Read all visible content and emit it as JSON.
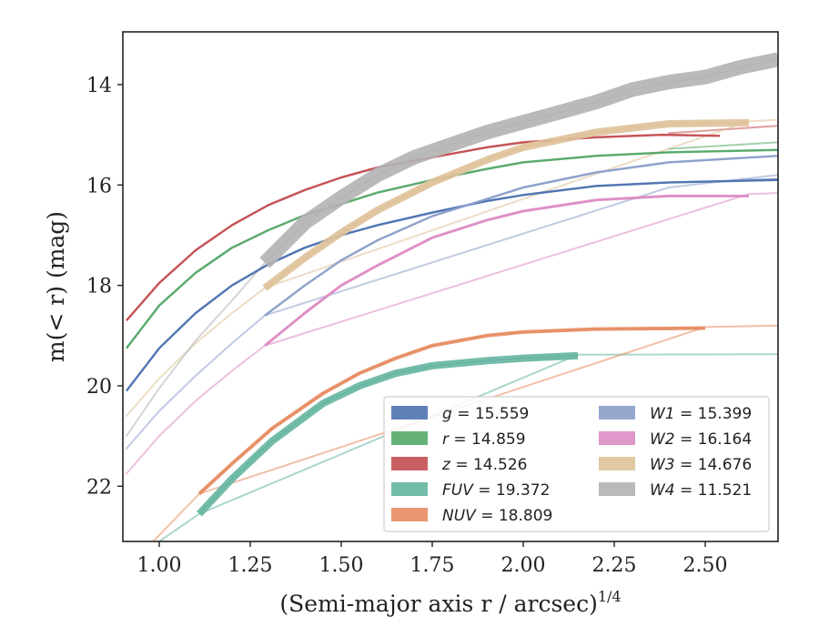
{
  "chart_data": {
    "type": "line",
    "xlabel": "(Semi-major axis r / arcsec)",
    "xlabel_superscript": "1/4",
    "ylabel": "m(< r) (mag)",
    "xlim": [
      0.9,
      2.7
    ],
    "ylim": [
      23.1,
      12.95
    ],
    "y_inverted": true,
    "x_ticks": [
      "1.00",
      "1.25",
      "1.50",
      "1.75",
      "2.00",
      "2.25",
      "2.50"
    ],
    "x_tick_values": [
      1.0,
      1.25,
      1.5,
      1.75,
      2.0,
      2.25,
      2.5
    ],
    "y_ticks": [
      "14",
      "16",
      "18",
      "20",
      "22"
    ],
    "y_tick_values": [
      14,
      16,
      18,
      20,
      22
    ],
    "grid": false,
    "legend_position": "lower-right",
    "legend_columns": 2,
    "series": [
      {
        "name": "g = 15.559",
        "legend_sym": "g",
        "legend_val": "= 15.559",
        "color": "#4c72b0",
        "band_width": 2.5,
        "points": [
          [
            0.91,
            20.1
          ],
          [
            1.0,
            19.25
          ],
          [
            1.1,
            18.55
          ],
          [
            1.2,
            18.0
          ],
          [
            1.3,
            17.58
          ],
          [
            1.4,
            17.25
          ],
          [
            1.5,
            17.0
          ],
          [
            1.6,
            16.8
          ],
          [
            1.75,
            16.55
          ],
          [
            1.9,
            16.32
          ],
          [
            2.0,
            16.2
          ],
          [
            2.2,
            16.02
          ],
          [
            2.4,
            15.95
          ],
          [
            2.7,
            15.9
          ]
        ],
        "faint_points": [
          [
            2.6,
            15.9
          ],
          [
            2.7,
            15.88
          ]
        ]
      },
      {
        "name": "r = 14.859",
        "legend_sym": "r",
        "legend_val": "= 14.859",
        "color": "#55a868",
        "band_width": 2.5,
        "points": [
          [
            0.91,
            19.25
          ],
          [
            1.0,
            18.4
          ],
          [
            1.1,
            17.75
          ],
          [
            1.2,
            17.25
          ],
          [
            1.3,
            16.9
          ],
          [
            1.4,
            16.6
          ],
          [
            1.5,
            16.38
          ],
          [
            1.6,
            16.15
          ],
          [
            1.75,
            15.9
          ],
          [
            1.9,
            15.68
          ],
          [
            2.0,
            15.55
          ],
          [
            2.2,
            15.42
          ],
          [
            2.4,
            15.35
          ],
          [
            2.7,
            15.3
          ]
        ],
        "faint_points": [
          [
            2.4,
            15.28
          ],
          [
            2.7,
            15.15
          ]
        ]
      },
      {
        "name": "z = 14.526",
        "legend_sym": "z",
        "legend_val": "= 14.526",
        "color": "#c44e52",
        "band_width": 2.5,
        "points": [
          [
            0.91,
            18.7
          ],
          [
            1.0,
            17.95
          ],
          [
            1.1,
            17.3
          ],
          [
            1.2,
            16.8
          ],
          [
            1.3,
            16.4
          ],
          [
            1.4,
            16.1
          ],
          [
            1.5,
            15.85
          ],
          [
            1.6,
            15.65
          ],
          [
            1.75,
            15.45
          ],
          [
            1.9,
            15.25
          ],
          [
            2.0,
            15.15
          ],
          [
            2.2,
            15.05
          ],
          [
            2.38,
            15.0
          ],
          [
            2.54,
            15.02
          ]
        ],
        "faint_points": [
          [
            2.4,
            14.97
          ],
          [
            2.7,
            14.82
          ]
        ]
      },
      {
        "name": "FUV = 19.372",
        "legend_sym": "FUV",
        "legend_val": "= 19.372",
        "color": "#64b5a0",
        "band_width": 8,
        "points": [
          [
            1.11,
            22.55
          ],
          [
            1.2,
            21.85
          ],
          [
            1.31,
            21.1
          ],
          [
            1.45,
            20.35
          ],
          [
            1.55,
            20.0
          ],
          [
            1.65,
            19.75
          ],
          [
            1.75,
            19.6
          ],
          [
            1.9,
            19.5
          ],
          [
            2.0,
            19.45
          ],
          [
            2.15,
            19.4
          ]
        ],
        "faint_points": [
          [
            0.98,
            23.2
          ],
          [
            1.05,
            22.85
          ],
          [
            1.11,
            22.55
          ],
          [
            2.15,
            19.38
          ],
          [
            2.7,
            19.37
          ]
        ]
      },
      {
        "name": "NUV = 18.809",
        "legend_sym": "NUV",
        "legend_val": "= 18.809",
        "color": "#e58c62",
        "band_width": 4,
        "points": [
          [
            1.11,
            22.15
          ],
          [
            1.2,
            21.55
          ],
          [
            1.31,
            20.85
          ],
          [
            1.45,
            20.15
          ],
          [
            1.55,
            19.75
          ],
          [
            1.65,
            19.45
          ],
          [
            1.75,
            19.2
          ],
          [
            1.9,
            19.0
          ],
          [
            2.0,
            18.93
          ],
          [
            2.2,
            18.87
          ],
          [
            2.5,
            18.85
          ]
        ],
        "faint_points": [
          [
            0.97,
            23.2
          ],
          [
            1.05,
            22.6
          ],
          [
            1.11,
            22.15
          ],
          [
            2.5,
            18.83
          ],
          [
            2.7,
            18.8
          ]
        ]
      },
      {
        "name": "W1 = 15.399",
        "legend_sym": "W1",
        "legend_val": "= 15.399",
        "color": "#8c9fca",
        "band_width": 2.5,
        "points": [
          [
            1.29,
            18.6
          ],
          [
            1.4,
            18.0
          ],
          [
            1.5,
            17.5
          ],
          [
            1.6,
            17.1
          ],
          [
            1.75,
            16.62
          ],
          [
            1.9,
            16.28
          ],
          [
            2.0,
            16.05
          ],
          [
            2.2,
            15.75
          ],
          [
            2.4,
            15.55
          ],
          [
            2.7,
            15.42
          ]
        ],
        "faint_points": [
          [
            0.91,
            21.25
          ],
          [
            1.0,
            20.5
          ],
          [
            1.1,
            19.8
          ],
          [
            1.2,
            19.15
          ],
          [
            1.29,
            18.6
          ],
          [
            2.4,
            16.05
          ],
          [
            2.7,
            15.8
          ]
        ]
      },
      {
        "name": "W2 = 16.164",
        "legend_sym": "W2",
        "legend_val": "= 16.164",
        "color": "#dd8cc4",
        "band_width": 3,
        "points": [
          [
            1.29,
            19.2
          ],
          [
            1.4,
            18.55
          ],
          [
            1.5,
            18.0
          ],
          [
            1.6,
            17.6
          ],
          [
            1.75,
            17.05
          ],
          [
            1.9,
            16.7
          ],
          [
            2.0,
            16.52
          ],
          [
            2.2,
            16.3
          ],
          [
            2.4,
            16.22
          ],
          [
            2.62,
            16.22
          ]
        ],
        "faint_points": [
          [
            0.91,
            21.75
          ],
          [
            1.0,
            21.0
          ],
          [
            1.1,
            20.3
          ],
          [
            1.2,
            19.7
          ],
          [
            1.29,
            19.2
          ],
          [
            2.62,
            16.18
          ],
          [
            2.7,
            16.16
          ]
        ]
      },
      {
        "name": "W3 = 14.676",
        "legend_sym": "W3",
        "legend_val": "= 14.676",
        "color": "#dec198",
        "band_width": 8,
        "points": [
          [
            1.29,
            18.05
          ],
          [
            1.4,
            17.45
          ],
          [
            1.5,
            16.95
          ],
          [
            1.6,
            16.5
          ],
          [
            1.75,
            15.95
          ],
          [
            1.9,
            15.5
          ],
          [
            2.0,
            15.25
          ],
          [
            2.2,
            14.95
          ],
          [
            2.4,
            14.78
          ],
          [
            2.62,
            14.76
          ]
        ],
        "faint_points": [
          [
            0.91,
            20.6
          ],
          [
            1.0,
            19.85
          ],
          [
            1.1,
            19.15
          ],
          [
            1.2,
            18.55
          ],
          [
            1.29,
            18.05
          ],
          [
            2.62,
            14.73
          ],
          [
            2.7,
            14.7
          ]
        ]
      },
      {
        "name": "W4 = 11.521",
        "legend_sym": "W4",
        "legend_val": "= 11.521",
        "color": "#b3b3b3",
        "band_width": 16,
        "points": [
          [
            1.29,
            17.55
          ],
          [
            1.4,
            16.75
          ],
          [
            1.5,
            16.25
          ],
          [
            1.6,
            15.8
          ],
          [
            1.7,
            15.45
          ],
          [
            1.8,
            15.2
          ],
          [
            1.9,
            14.95
          ],
          [
            2.0,
            14.75
          ],
          [
            2.1,
            14.55
          ],
          [
            2.2,
            14.35
          ],
          [
            2.3,
            14.1
          ],
          [
            2.4,
            13.95
          ],
          [
            2.5,
            13.85
          ],
          [
            2.6,
            13.65
          ],
          [
            2.7,
            13.5
          ]
        ],
        "faint_points": [
          [
            0.91,
            21.0
          ],
          [
            1.0,
            20.05
          ],
          [
            1.1,
            19.1
          ],
          [
            1.2,
            18.3
          ],
          [
            1.29,
            17.55
          ]
        ]
      }
    ]
  }
}
